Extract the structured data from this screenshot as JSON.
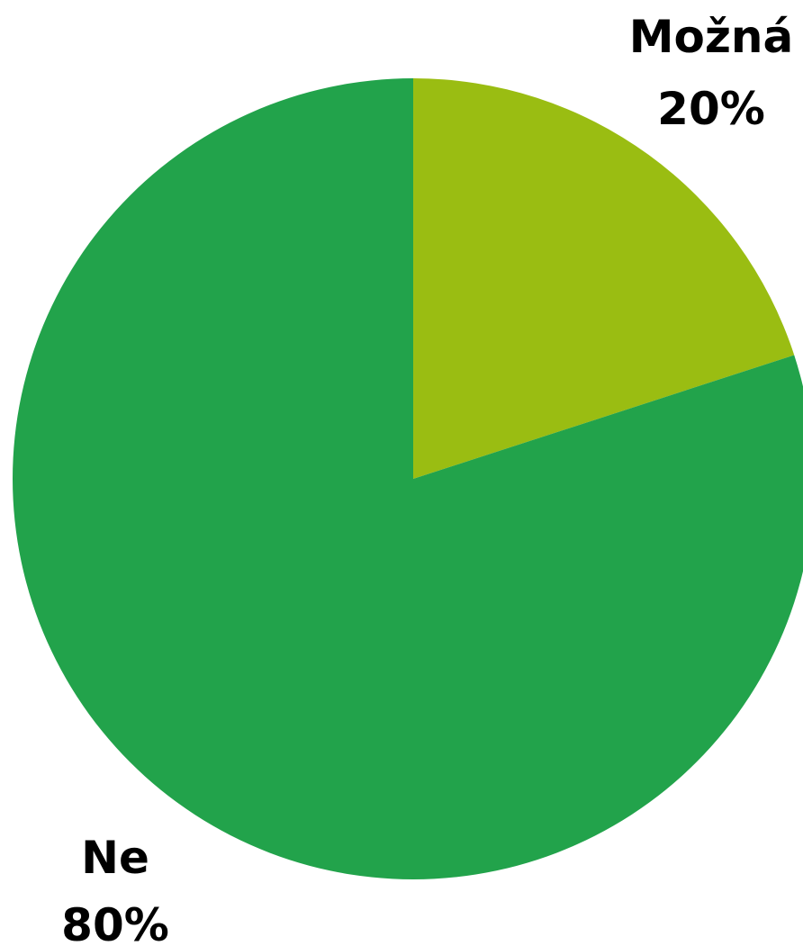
{
  "chart_data": {
    "type": "pie",
    "title": "",
    "slices": [
      {
        "label": "Možná",
        "value": 20,
        "value_label": "20%",
        "color": "#9abd12"
      },
      {
        "label": "Ne",
        "value": 80,
        "value_label": "80%",
        "color": "#22a34b"
      }
    ],
    "start_angle": "12 o'clock",
    "direction": "clockwise",
    "legend": "none"
  }
}
